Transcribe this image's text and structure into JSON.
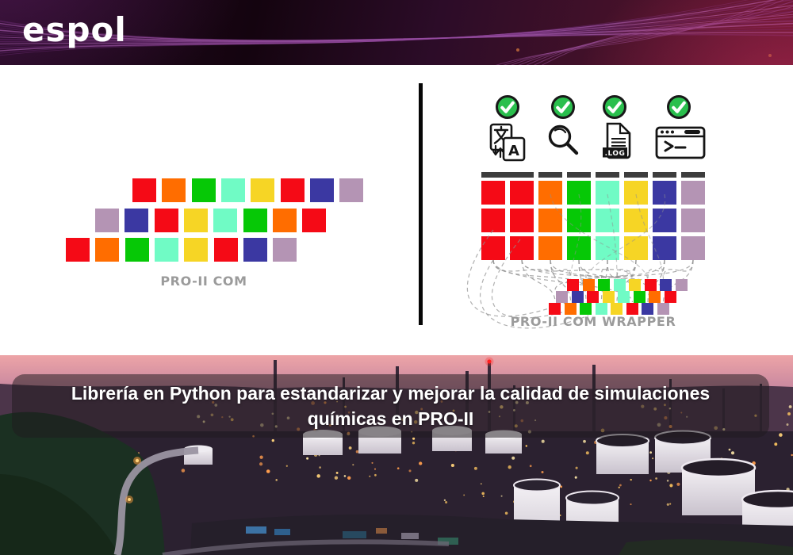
{
  "header": {
    "logo_text": "espol"
  },
  "palette": {
    "red": "#f50a16",
    "orange": "#ff6d00",
    "green": "#06c806",
    "mint": "#70fbc5",
    "yellow": "#f6d525",
    "indigo": "#3b38a2",
    "mauve": "#b494b4",
    "column_header": "#3d3d3d",
    "label_gray": "#9b9b9b",
    "check_green": "#2abf4d",
    "divider_black": "#060606"
  },
  "left_diagram": {
    "label": "PRO-II COM",
    "rows": [
      {
        "offset": 84,
        "cells": [
          "red",
          "orange",
          "green",
          "mint",
          "yellow",
          "red",
          "indigo",
          "mauve"
        ]
      },
      {
        "offset": 37,
        "cells": [
          "mauve",
          "indigo",
          "red",
          "yellow",
          "mint",
          "green",
          "orange",
          "red"
        ]
      },
      {
        "offset": 0,
        "cells": [
          "red",
          "orange",
          "green",
          "mint",
          "yellow",
          "red",
          "indigo",
          "mauve"
        ]
      }
    ]
  },
  "right_diagram": {
    "label": "PRO-II COM WRAPPER",
    "features": [
      {
        "icon": "translate-icon",
        "status": "check"
      },
      {
        "icon": "search-icon",
        "status": "check"
      },
      {
        "icon": "log-file-icon",
        "status": "check",
        "badge": ".LOG"
      },
      {
        "icon": "terminal-icon",
        "status": "check"
      }
    ],
    "translate": {
      "left_char": "文",
      "right_char": "A"
    },
    "grid": {
      "header_spans": [
        2,
        1,
        1,
        1,
        1,
        1,
        1
      ],
      "columns": [
        "red",
        "red",
        "orange",
        "green",
        "mint",
        "yellow",
        "indigo",
        "mauve"
      ],
      "rows": 3
    },
    "mini_rows": [
      {
        "offset": 23,
        "cells": [
          "red",
          "orange",
          "green",
          "mint",
          "yellow",
          "red",
          "indigo",
          "mauve"
        ]
      },
      {
        "offset": 9,
        "cells": [
          "mauve",
          "indigo",
          "red",
          "yellow",
          "mint",
          "green",
          "orange",
          "red"
        ]
      },
      {
        "offset": 0,
        "cells": [
          "red",
          "orange",
          "green",
          "mint",
          "yellow",
          "red",
          "indigo",
          "mauve"
        ]
      }
    ]
  },
  "banner": {
    "line1": "Librería en Python para estandarizar y mejorar la calidad de simulaciones",
    "line2": "químicas en PRO-II"
  }
}
